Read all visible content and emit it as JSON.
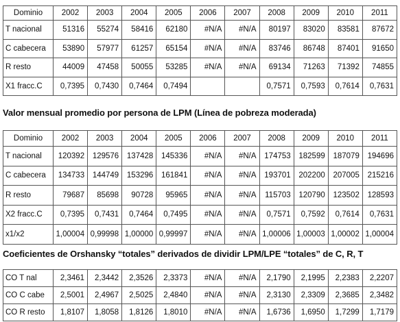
{
  "table1": {
    "headers": [
      "Dominio",
      "2002",
      "2003",
      "2004",
      "2005",
      "2006",
      "2007",
      "2008",
      "2009",
      "2010",
      "2011"
    ],
    "rows": [
      [
        "T nacional",
        "51316",
        "55274",
        "58416",
        "62180",
        "#N/A",
        "#N/A",
        "80197",
        "83020",
        "83581",
        "87672"
      ],
      [
        "C cabecera",
        "53890",
        "57977",
        "61257",
        "65154",
        "#N/A",
        "#N/A",
        "83746",
        "86748",
        "87401",
        "91650"
      ],
      [
        "R resto",
        "44009",
        "47458",
        "50055",
        "53285",
        "#N/A",
        "#N/A",
        "69134",
        "71263",
        "71392",
        "74855"
      ],
      [
        "X1 fracc.C",
        "0,7395",
        "0,7430",
        "0,7464",
        "0,7494",
        "",
        "",
        "0,7571",
        "0,7593",
        "0,7614",
        "0,7631"
      ]
    ]
  },
  "section2_title": "Valor mensual promedio por persona de LPM (Línea de pobreza moderada)",
  "table2": {
    "headers": [
      "Dominio",
      "2002",
      "2003",
      "2004",
      "2005",
      "2006",
      "2007",
      "2008",
      "2009",
      "2010",
      "2011"
    ],
    "rows": [
      [
        "T nacional",
        "120392",
        "129576",
        "137428",
        "145336",
        "#N/A",
        "#N/A",
        "174753",
        "182599",
        "187079",
        "194696"
      ],
      [
        "C cabecera",
        "134733",
        "144749",
        "153296",
        "161841",
        "#N/A",
        "#N/A",
        "193701",
        "202200",
        "207005",
        "215216"
      ],
      [
        "R resto",
        "79687",
        "85698",
        "90728",
        "95965",
        "#N/A",
        "#N/A",
        "115703",
        "120790",
        "123502",
        "128593"
      ],
      [
        "X2 fracc.C",
        "0,7395",
        "0,7431",
        "0,7464",
        "0,7495",
        "#N/A",
        "#N/A",
        "0,7571",
        "0,7592",
        "0,7614",
        "0,7631"
      ],
      [
        "x1/x2",
        "1,00004",
        "0,99998",
        "1,00000",
        "0,99997",
        "#N/A",
        "#N/A",
        "1,00006",
        "1,00003",
        "1,00002",
        "1,00004"
      ]
    ]
  },
  "section3_title": "Coeficientes de Orshansky “totales” derivados de dividir LPM/LPE “totales” de C, R, T",
  "table3": {
    "rows": [
      [
        "CO T nal",
        "2,3461",
        "2,3442",
        "2,3526",
        "2,3373",
        "#N/A",
        "#N/A",
        "2,1790",
        "2,1995",
        "2,2383",
        "2,2207"
      ],
      [
        "CO C cabe",
        "2,5001",
        "2,4967",
        "2,5025",
        "2,4840",
        "#N/A",
        "#N/A",
        "2,3130",
        "2,3309",
        "2,3685",
        "2,3482"
      ],
      [
        "CO R resto",
        "1,8107",
        "1,8058",
        "1,8126",
        "1,8010",
        "#N/A",
        "#N/A",
        "1,6736",
        "1,6950",
        "1,7299",
        "1,7179"
      ]
    ]
  }
}
